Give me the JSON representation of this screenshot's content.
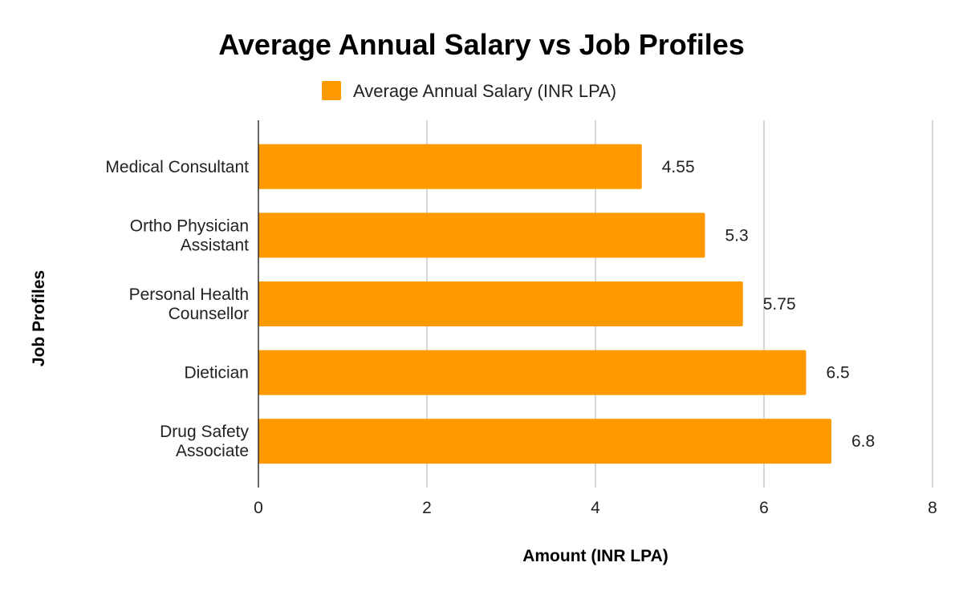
{
  "chart_data": {
    "type": "bar",
    "orientation": "horizontal",
    "title": "Average Annual Salary vs Job Profiles",
    "xlabel": "Amount (INR LPA)",
    "ylabel": "Job Profiles",
    "categories": [
      [
        "Medical Consultant"
      ],
      [
        "Ortho Physician",
        "Assistant"
      ],
      [
        "Personal Health",
        "Counsellor"
      ],
      [
        "Dietician"
      ],
      [
        "Drug Safety",
        "Associate"
      ]
    ],
    "series": [
      {
        "name": "Average Annual Salary (INR LPA)",
        "values": [
          4.55,
          5.3,
          5.75,
          6.5,
          6.8
        ],
        "value_labels": [
          "4.55",
          "5.3",
          "5.75",
          "6.5",
          "6.8"
        ],
        "color": "#FF9900"
      }
    ],
    "xlim": [
      0,
      8
    ],
    "xticks": [
      "0",
      "2",
      "4",
      "6",
      "8"
    ],
    "grid": true,
    "legend_position": "top"
  }
}
